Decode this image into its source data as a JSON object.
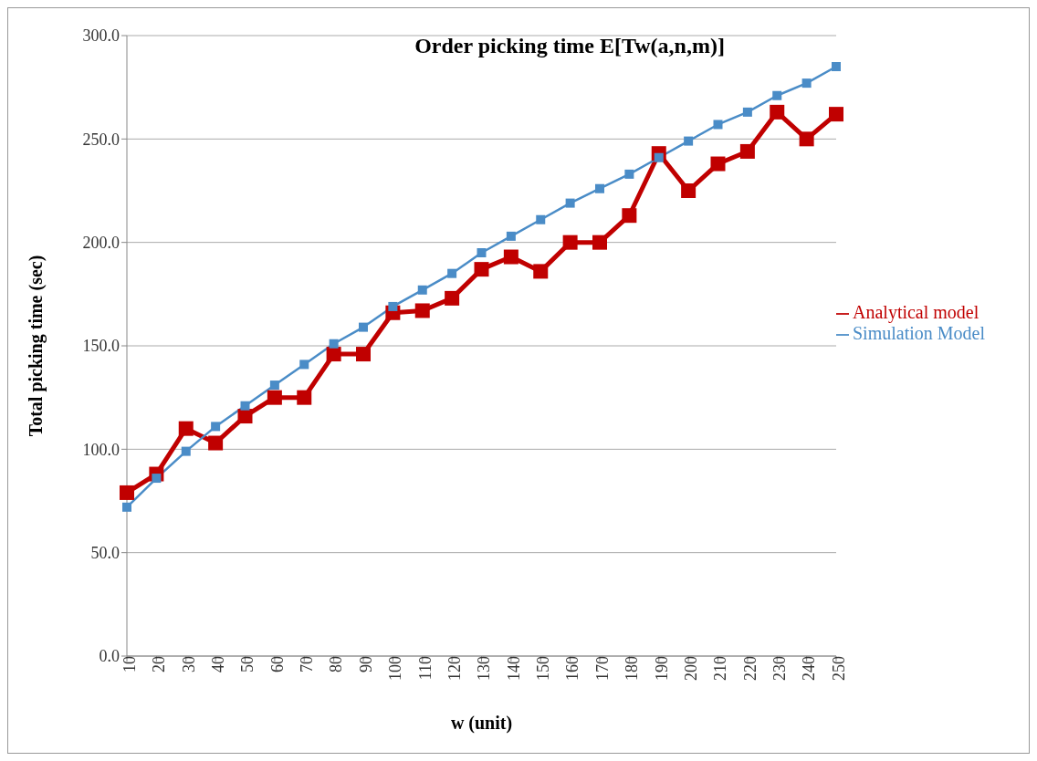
{
  "chart_data": {
    "type": "line",
    "title": "Order picking time E[Tw(a,n,m)]",
    "xlabel": "w (unit)",
    "ylabel": "Total picking time (sec)",
    "categories": [
      "10",
      "20",
      "30",
      "40",
      "50",
      "60",
      "70",
      "80",
      "90",
      "100",
      "110",
      "120",
      "130",
      "140",
      "150",
      "160",
      "170",
      "180",
      "190",
      "200",
      "210",
      "220",
      "230",
      "240",
      "250"
    ],
    "series": [
      {
        "name": "Analytical model",
        "color": "#c00000",
        "values": [
          79,
          88,
          110,
          103,
          116,
          125,
          125,
          146,
          146,
          166,
          167,
          173,
          187,
          193,
          186,
          200,
          200,
          213,
          243,
          225,
          238,
          244,
          263,
          250,
          262
        ]
      },
      {
        "name": "Simulation Model",
        "color": "#4a8cc7",
        "values": [
          72,
          86,
          99,
          111,
          121,
          131,
          141,
          151,
          159,
          169,
          177,
          185,
          195,
          203,
          211,
          219,
          226,
          233,
          241,
          249,
          257,
          263,
          271,
          277,
          285
        ]
      }
    ],
    "ylim": [
      0,
      300
    ],
    "yticks": [
      {
        "value": 0,
        "label": "0.0"
      },
      {
        "value": 50,
        "label": "50.0"
      },
      {
        "value": 100,
        "label": "100.0"
      },
      {
        "value": 150,
        "label": "150.0"
      },
      {
        "value": 200,
        "label": "200.0"
      },
      {
        "value": 250,
        "label": "250.0"
      },
      {
        "value": 300,
        "label": "300.0"
      }
    ],
    "grid": "y",
    "legend": "right",
    "marker": "square",
    "line_style": "solid"
  }
}
